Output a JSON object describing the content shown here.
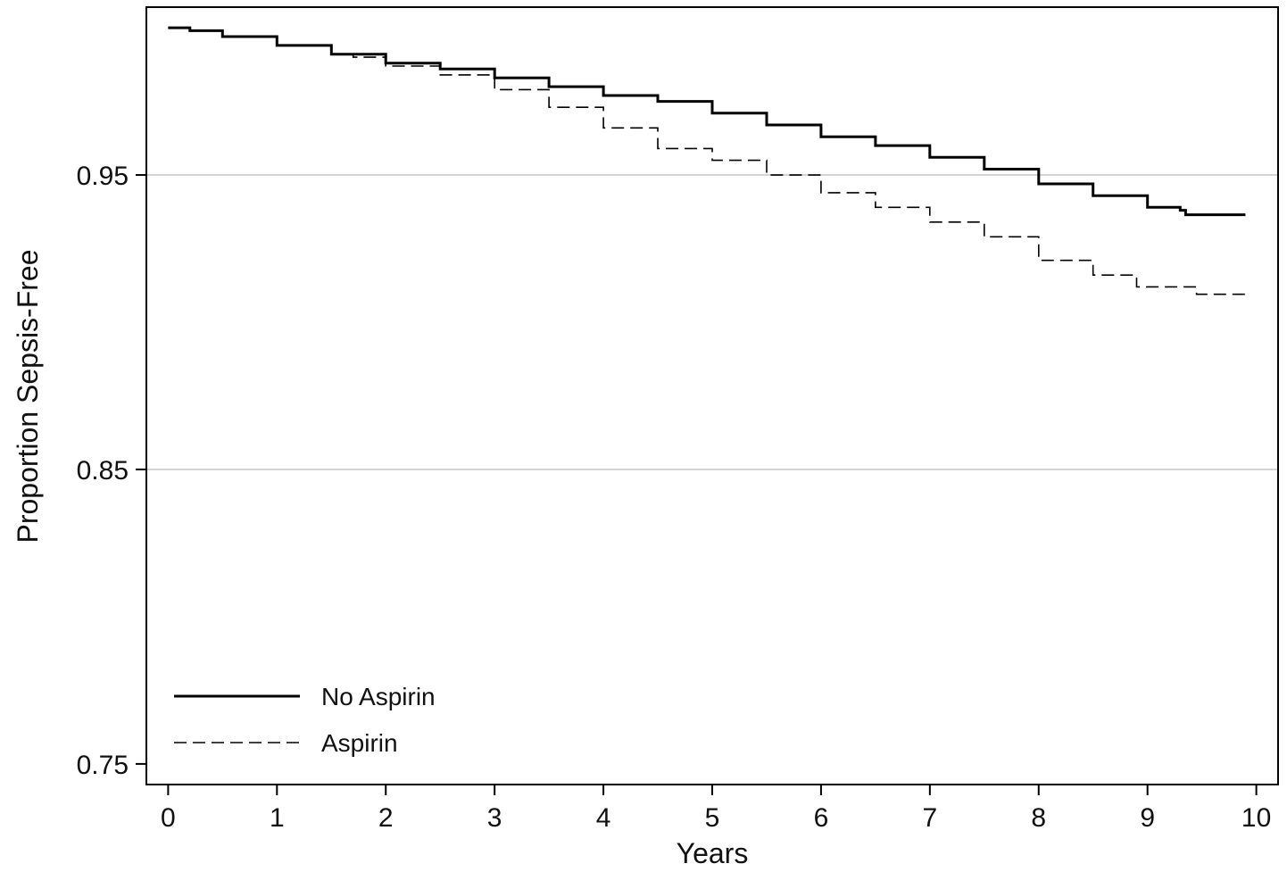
{
  "chart_data": {
    "type": "line",
    "title": "",
    "xlabel": "Years",
    "ylabel": "Proportion Sepsis-Free",
    "xlim": [
      -0.2,
      10.2
    ],
    "ylim": [
      0.743,
      1.007
    ],
    "x_ticks": [
      0,
      1,
      2,
      3,
      4,
      5,
      6,
      7,
      8,
      9,
      10
    ],
    "x_tick_labels": [
      "0",
      "1",
      "2",
      "3",
      "4",
      "5",
      "6",
      "7",
      "8",
      "9",
      "10"
    ],
    "y_ticks": [
      0.75,
      0.85,
      0.95
    ],
    "y_tick_labels": [
      "0.75",
      "0.85",
      "0.95"
    ],
    "grid": "horizontal lines at y ticks",
    "legend_position": "bottom-left",
    "series": [
      {
        "name": "No Aspirin",
        "line_style": "solid",
        "color": "#000000",
        "x": [
          0,
          0.2,
          0.5,
          1.0,
          1.5,
          2.0,
          2.5,
          3.0,
          3.5,
          4.0,
          4.5,
          5.0,
          5.5,
          6.0,
          6.5,
          7.0,
          7.5,
          8.0,
          8.5,
          9.0,
          9.3,
          9.35,
          9.9
        ],
        "y": [
          1.0,
          0.999,
          0.997,
          0.994,
          0.991,
          0.988,
          0.986,
          0.983,
          0.98,
          0.977,
          0.975,
          0.971,
          0.967,
          0.963,
          0.96,
          0.956,
          0.952,
          0.947,
          0.943,
          0.939,
          0.938,
          0.9365,
          0.9365
        ]
      },
      {
        "name": "Aspirin",
        "line_style": "dashed",
        "color": "#000000",
        "x": [
          0,
          0.2,
          0.5,
          1.0,
          1.5,
          1.7,
          2.0,
          2.5,
          3.0,
          3.5,
          4.0,
          4.5,
          5.0,
          5.5,
          6.0,
          6.5,
          7.0,
          7.5,
          8.0,
          8.5,
          8.9,
          9.0,
          9.4,
          9.45,
          9.9
        ],
        "y": [
          1.0,
          0.999,
          0.997,
          0.994,
          0.991,
          0.99,
          0.987,
          0.984,
          0.979,
          0.973,
          0.966,
          0.959,
          0.955,
          0.95,
          0.944,
          0.939,
          0.934,
          0.929,
          0.921,
          0.916,
          0.912,
          0.912,
          0.912,
          0.9095,
          0.9095
        ]
      }
    ]
  }
}
